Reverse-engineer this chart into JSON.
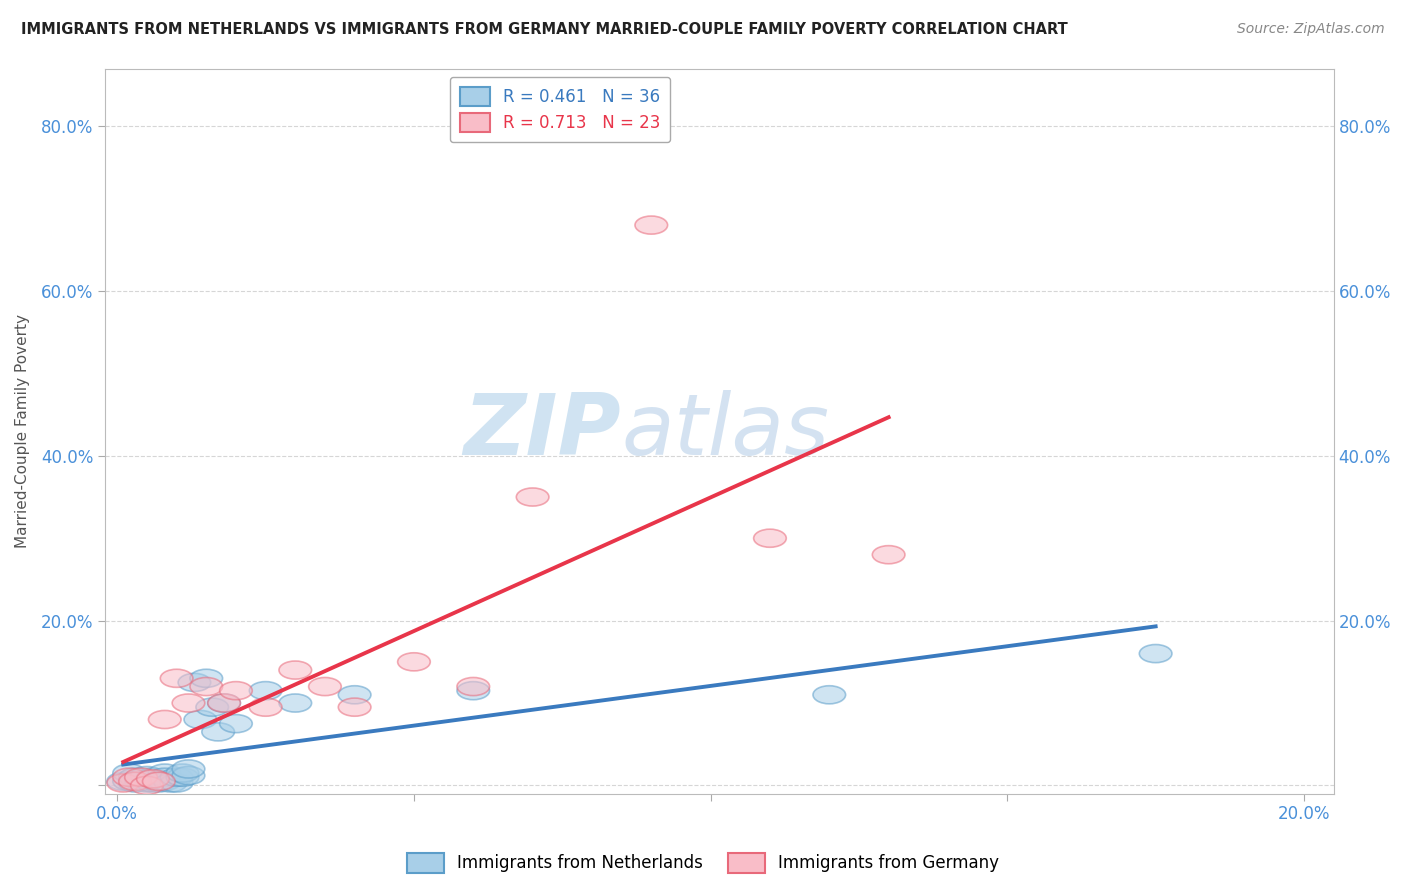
{
  "title": "IMMIGRANTS FROM NETHERLANDS VS IMMIGRANTS FROM GERMANY MARRIED-COUPLE FAMILY POVERTY CORRELATION CHART",
  "source": "Source: ZipAtlas.com",
  "ylabel": "Married-Couple Family Poverty",
  "xlim": [
    -0.002,
    0.205
  ],
  "ylim": [
    -0.01,
    0.87
  ],
  "xticks": [
    0.0,
    0.05,
    0.1,
    0.15,
    0.2
  ],
  "yticks": [
    0.0,
    0.2,
    0.4,
    0.6,
    0.8
  ],
  "netherlands_R": 0.461,
  "netherlands_N": 36,
  "germany_R": 0.713,
  "germany_N": 23,
  "netherlands_color": "#a8cfe8",
  "germany_color": "#f9bdc8",
  "netherlands_edge_color": "#5b9dc9",
  "germany_edge_color": "#e8697a",
  "netherlands_line_color": "#3a7abf",
  "germany_line_color": "#e8354a",
  "background_color": "#ffffff",
  "grid_color": "#cccccc",
  "tick_color": "#4a90d9",
  "watermark_color": "#ddeef8",
  "netherlands_x": [
    0.001,
    0.002,
    0.002,
    0.003,
    0.003,
    0.004,
    0.004,
    0.005,
    0.005,
    0.006,
    0.006,
    0.007,
    0.007,
    0.008,
    0.008,
    0.008,
    0.009,
    0.01,
    0.01,
    0.011,
    0.011,
    0.012,
    0.012,
    0.013,
    0.014,
    0.015,
    0.016,
    0.017,
    0.018,
    0.02,
    0.025,
    0.03,
    0.04,
    0.06,
    0.12,
    0.175
  ],
  "netherlands_y": [
    0.005,
    0.005,
    0.015,
    0.003,
    0.01,
    0.005,
    0.008,
    0.003,
    0.012,
    0.003,
    0.01,
    0.005,
    0.003,
    0.015,
    0.005,
    0.01,
    0.003,
    0.003,
    0.01,
    0.01,
    0.015,
    0.012,
    0.02,
    0.125,
    0.08,
    0.13,
    0.095,
    0.065,
    0.1,
    0.075,
    0.115,
    0.1,
    0.11,
    0.115,
    0.11,
    0.16
  ],
  "germany_x": [
    0.001,
    0.002,
    0.003,
    0.004,
    0.005,
    0.006,
    0.007,
    0.008,
    0.01,
    0.012,
    0.015,
    0.018,
    0.02,
    0.025,
    0.03,
    0.035,
    0.04,
    0.05,
    0.06,
    0.07,
    0.09,
    0.11,
    0.13
  ],
  "germany_y": [
    0.003,
    0.01,
    0.005,
    0.01,
    0.0,
    0.008,
    0.005,
    0.08,
    0.13,
    0.1,
    0.12,
    0.1,
    0.115,
    0.095,
    0.14,
    0.12,
    0.095,
    0.15,
    0.12,
    0.35,
    0.68,
    0.3,
    0.28
  ],
  "nl_trend_x": [
    0.001,
    0.175
  ],
  "nl_trend_y": [
    0.002,
    0.165
  ],
  "de_trend_x": [
    0.001,
    0.13
  ],
  "de_trend_y": [
    -0.015,
    0.42
  ]
}
